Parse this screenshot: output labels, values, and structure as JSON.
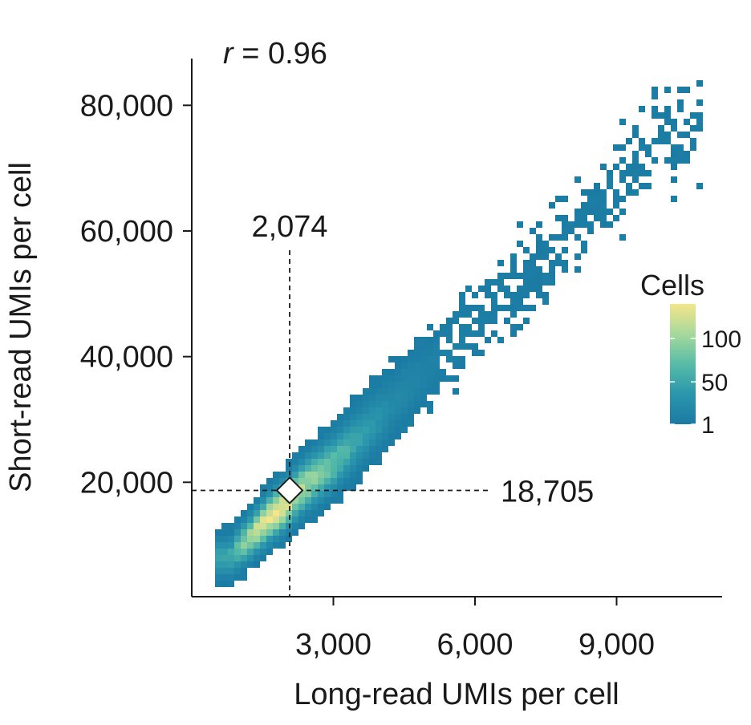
{
  "chart_data": {
    "type": "heatmap",
    "subtype": "2d-density-scatter",
    "annotation": {
      "r_symbol": "r",
      "r_value": " = 0.96"
    },
    "xlabel": "Long-read UMIs per cell",
    "ylabel": "Short-read UMIs per cell",
    "xlim": [
      0,
      11200
    ],
    "ylim": [
      0,
      88000
    ],
    "x_ticks": [
      3000,
      6000,
      9000
    ],
    "x_tick_labels": [
      "3,000",
      "6,000",
      "9,000"
    ],
    "y_ticks": [
      20000,
      40000,
      60000,
      80000
    ],
    "y_tick_labels": [
      "20,000",
      "40,000",
      "60,000",
      "80,000"
    ],
    "median": {
      "x": 2074,
      "y": 18705,
      "x_label": "2,074",
      "y_label": "18,705"
    },
    "legend": {
      "title": "Cells",
      "placement": "right",
      "ticks": [
        1,
        50,
        100
      ],
      "tick_labels": [
        "1",
        "50",
        "100"
      ],
      "max_count": 140,
      "colors": [
        "#1b7aa3",
        "#2b96ad",
        "#58bca7",
        "#a6d99c",
        "#f4e58a"
      ]
    },
    "density_ridge": [
      {
        "x": 800,
        "y": 8000,
        "count": 35
      },
      {
        "x": 1200,
        "y": 11000,
        "count": 90
      },
      {
        "x": 1600,
        "y": 14000,
        "count": 140
      },
      {
        "x": 2000,
        "y": 16500,
        "count": 130
      },
      {
        "x": 2400,
        "y": 19500,
        "count": 95
      },
      {
        "x": 3000,
        "y": 23000,
        "count": 60
      },
      {
        "x": 3600,
        "y": 27500,
        "count": 30
      },
      {
        "x": 4200,
        "y": 32000,
        "count": 12
      },
      {
        "x": 5000,
        "y": 38000,
        "count": 5
      },
      {
        "x": 6000,
        "y": 45000,
        "count": 3
      },
      {
        "x": 7000,
        "y": 52000,
        "count": 2
      },
      {
        "x": 8000,
        "y": 60000,
        "count": 1
      },
      {
        "x": 9000,
        "y": 68000,
        "count": 1
      },
      {
        "x": 10000,
        "y": 76000,
        "count": 1
      }
    ],
    "grid": false
  }
}
